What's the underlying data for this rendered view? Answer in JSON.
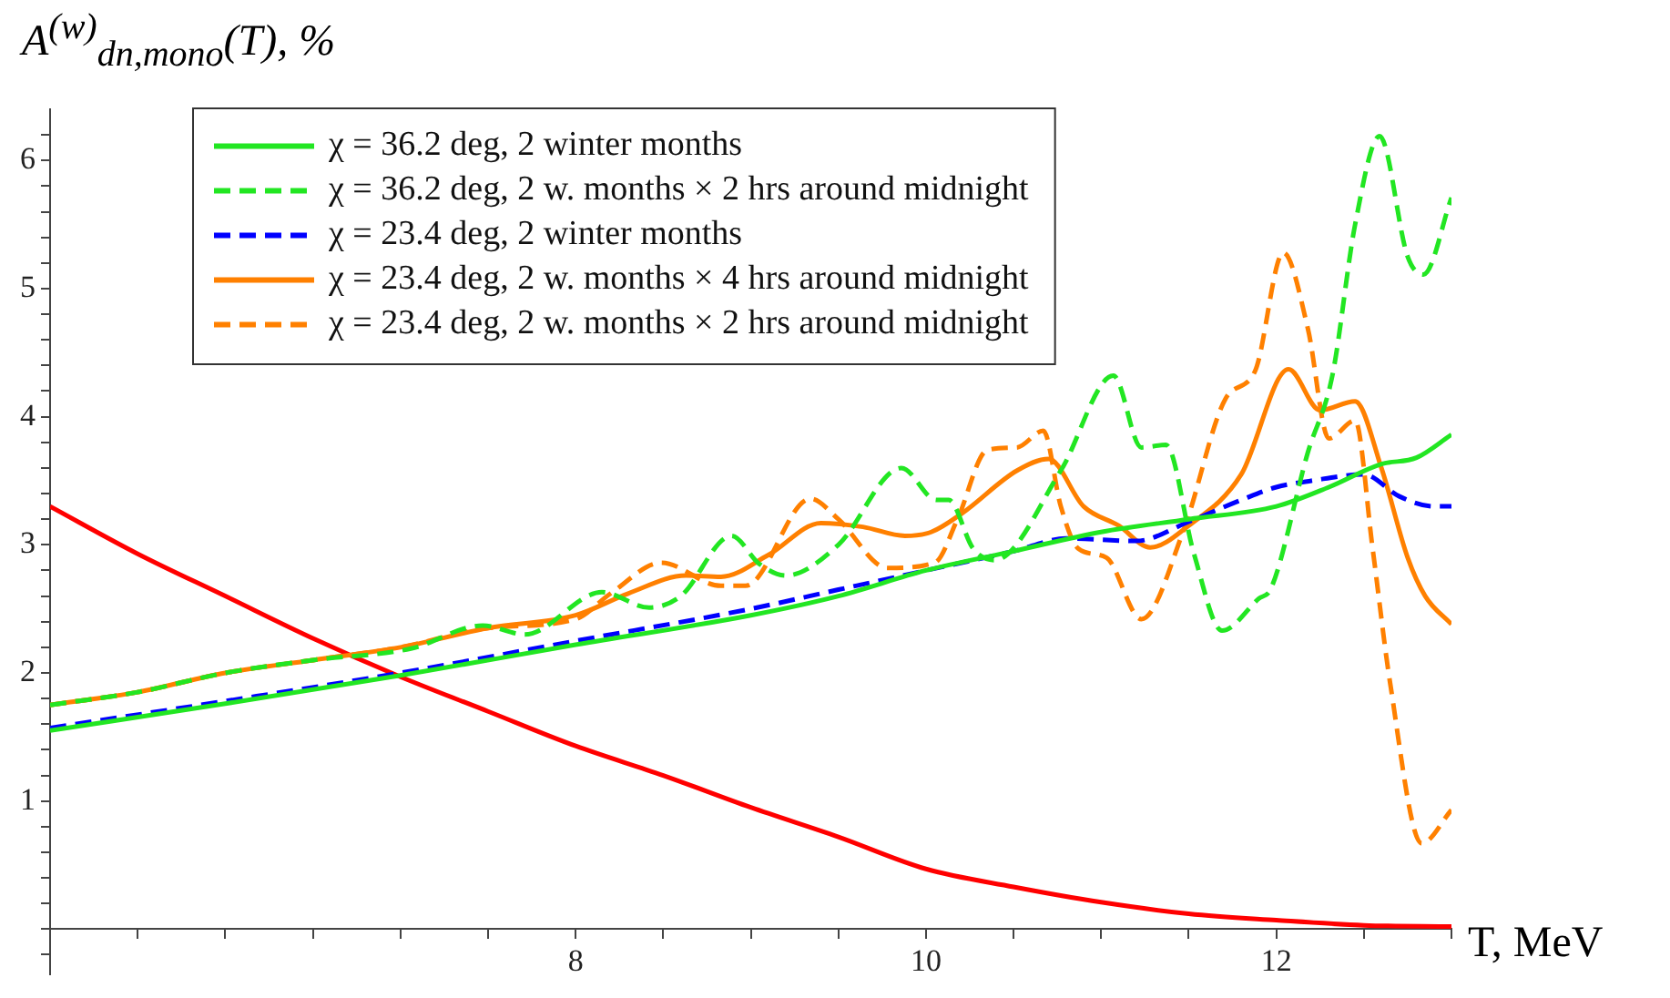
{
  "chart_data": {
    "type": "line",
    "xlabel": "T, MeV",
    "ylabel": "A$^{(w)}$$_{dn,mono}$(T), %",
    "xlim": [
      5,
      13
    ],
    "ylim": [
      -0.35,
      6.4
    ],
    "legend": "top left",
    "grid": false,
    "marker": "none",
    "xticks": [
      {
        "value": 5,
        "label": null
      },
      {
        "value": 5.5,
        "label": null
      },
      {
        "value": 6,
        "label": null
      },
      {
        "value": 6.5,
        "label": null
      },
      {
        "value": 7,
        "label": null
      },
      {
        "value": 7.5,
        "label": null
      },
      8,
      {
        "value": 8.5,
        "label": null
      },
      {
        "value": 9,
        "label": null
      },
      {
        "value": 9.5,
        "label": null
      },
      10,
      {
        "value": 10.5,
        "label": null
      },
      {
        "value": 11,
        "label": null
      },
      {
        "value": 11.5,
        "label": null
      },
      12,
      {
        "value": 12.5,
        "label": null
      },
      {
        "value": 13,
        "label": null
      }
    ],
    "yticks": [
      {
        "value": -0.2,
        "label": null
      },
      {
        "value": 0,
        "label": null
      },
      {
        "value": 0.2,
        "label": null
      },
      {
        "value": 0.4,
        "label": null
      },
      {
        "value": 0.6,
        "label": null
      },
      {
        "value": 0.8,
        "label": null
      },
      1,
      {
        "value": 1.2,
        "label": null
      },
      {
        "value": 1.4,
        "label": null
      },
      {
        "value": 1.6,
        "label": null
      },
      {
        "value": 1.8,
        "label": null
      },
      2,
      {
        "value": 2.2,
        "label": null
      },
      {
        "value": 2.4,
        "label": null
      },
      {
        "value": 2.6,
        "label": null
      },
      {
        "value": 2.8,
        "label": null
      },
      3,
      {
        "value": 3.2,
        "label": null
      },
      {
        "value": 3.4,
        "label": null
      },
      {
        "value": 3.6,
        "label": null
      },
      {
        "value": 3.8,
        "label": null
      },
      4,
      {
        "value": 4.2,
        "label": null
      },
      {
        "value": 4.4,
        "label": null
      },
      {
        "value": 4.6,
        "label": null
      },
      {
        "value": 4.8,
        "label": null
      },
      5,
      {
        "value": 5.2,
        "label": null
      },
      {
        "value": 5.4,
        "label": null
      },
      {
        "value": 5.6,
        "label": null
      },
      {
        "value": 5.8,
        "label": null
      },
      6,
      {
        "value": 6.2,
        "label": null
      }
    ],
    "series": [
      {
        "name": "χ = 36.2 deg, 2 winter months",
        "color": "#22e622",
        "line_style": "solid",
        "x": [
          5,
          6,
          7,
          8,
          9,
          9.5,
          10,
          10.5,
          11,
          11.5,
          12,
          12.3,
          12.6,
          12.8,
          13
        ],
        "values": [
          1.55,
          1.76,
          1.98,
          2.22,
          2.45,
          2.6,
          2.8,
          2.95,
          3.1,
          3.2,
          3.3,
          3.45,
          3.63,
          3.68,
          3.86
        ]
      },
      {
        "name": "χ = 36.2 deg, 2 w. months × 2 hrs around midnight",
        "color": "#22e622",
        "line_style": "dashed",
        "x": [
          5,
          5.5,
          6,
          6.5,
          7.06,
          7.47,
          7.71,
          8.15,
          8.42,
          8.6,
          8.89,
          9.05,
          9.2,
          9.5,
          9.86,
          10.06,
          10.13,
          10.27,
          10.39,
          10.77,
          11.07,
          11.23,
          11.37,
          11.53,
          11.69,
          11.9,
          11.97,
          12.18,
          12.32,
          12.45,
          12.59,
          12.75,
          12.84,
          13
        ],
        "values": [
          1.75,
          1.85,
          2.0,
          2.1,
          2.19,
          2.37,
          2.3,
          2.63,
          2.51,
          2.6,
          3.07,
          2.85,
          2.76,
          3.0,
          3.6,
          3.35,
          3.35,
          2.97,
          2.88,
          3.58,
          4.32,
          3.76,
          3.78,
          2.93,
          2.33,
          2.58,
          2.66,
          3.72,
          4.32,
          5.5,
          6.19,
          5.25,
          5.11,
          5.71
        ]
      },
      {
        "name": "χ = 23.4 deg, 2 winter months",
        "color": "#0000ff",
        "line_style": "dashed",
        "x": [
          5,
          6,
          7,
          8,
          9,
          9.5,
          10,
          10.5,
          10.8,
          11.2,
          11.5,
          11.8,
          12,
          12.2,
          12.5,
          12.7,
          12.9,
          13
        ],
        "values": [
          1.57,
          1.78,
          2.0,
          2.25,
          2.5,
          2.65,
          2.8,
          2.95,
          3.05,
          3.03,
          3.18,
          3.35,
          3.45,
          3.5,
          3.55,
          3.38,
          3.3,
          3.3
        ]
      },
      {
        "name": "χ = 23.4 deg, 2 w. months × 4 hrs around midnight",
        "color": "#ff8000",
        "line_style": "solid",
        "x": [
          5,
          5.5,
          6,
          6.5,
          7,
          7.5,
          8,
          8.3,
          8.63,
          8.83,
          9.1,
          9.4,
          9.64,
          9.88,
          10.03,
          10.21,
          10.52,
          10.7,
          10.9,
          11.1,
          11.28,
          11.5,
          11.8,
          12.07,
          12.25,
          12.45,
          12.6,
          12.75,
          12.85,
          13
        ],
        "values": [
          1.75,
          1.85,
          2.0,
          2.1,
          2.2,
          2.35,
          2.45,
          2.62,
          2.76,
          2.75,
          2.92,
          3.17,
          3.14,
          3.07,
          3.1,
          3.25,
          3.58,
          3.67,
          3.3,
          3.15,
          2.98,
          3.15,
          3.55,
          4.37,
          4.05,
          4.12,
          3.6,
          2.9,
          2.6,
          2.38
        ]
      },
      {
        "name": "χ = 23.4 deg, 2 w. months × 2 hrs around midnight",
        "color": "#ff8000",
        "line_style": "dashed",
        "x": [
          5,
          5.5,
          6,
          6.5,
          7,
          7.5,
          8,
          8.2,
          8.49,
          8.83,
          8.97,
          9.34,
          9.5,
          9.78,
          10.05,
          10.18,
          10.35,
          10.52,
          10.67,
          10.77,
          10.87,
          11.03,
          11.23,
          11.47,
          11.71,
          11.88,
          12.04,
          12.18,
          12.3,
          12.45,
          12.55,
          12.65,
          12.83,
          13
        ],
        "values": [
          1.75,
          1.85,
          2.0,
          2.1,
          2.2,
          2.35,
          2.42,
          2.62,
          2.86,
          2.68,
          2.68,
          3.36,
          3.2,
          2.82,
          2.86,
          3.2,
          3.74,
          3.76,
          3.89,
          3.3,
          2.97,
          2.9,
          2.42,
          3.11,
          4.14,
          4.36,
          5.28,
          4.69,
          3.83,
          3.97,
          2.97,
          1.92,
          0.67,
          0.93
        ]
      },
      {
        "color": "#ff0000",
        "line_style": "solid",
        "x": [
          5,
          5.5,
          6,
          6.5,
          7,
          7.5,
          8,
          8.5,
          9,
          9.5,
          10,
          10.5,
          11,
          11.5,
          12,
          12.5,
          13
        ],
        "values": [
          3.3,
          2.93,
          2.6,
          2.27,
          1.97,
          1.7,
          1.43,
          1.2,
          0.95,
          0.72,
          0.47,
          0.33,
          0.21,
          0.12,
          0.07,
          0.03,
          0.02
        ]
      }
    ]
  }
}
